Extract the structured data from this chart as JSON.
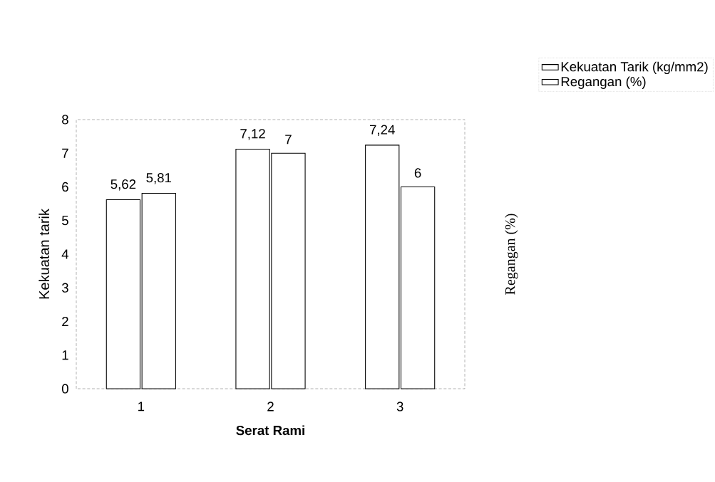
{
  "chart_data": {
    "type": "bar",
    "xlabel": "Serat Rami",
    "ylabel": "Kekuatan tarik",
    "y2label": "Regangan (%)",
    "categories": [
      "1",
      "2",
      "3"
    ],
    "series": [
      {
        "name": "Kekuatan Tarik (kg/mm2)",
        "color": "#ffffff",
        "values": [
          5.62,
          7.12,
          7.24
        ],
        "value_labels": [
          "5,62",
          "7,12",
          "7,24"
        ]
      },
      {
        "name": "Regangan (%)",
        "color": "#ffffff",
        "values": [
          5.81,
          7,
          6
        ],
        "value_labels": [
          "5,81",
          "7",
          "6"
        ]
      }
    ],
    "ylim": [
      0,
      8
    ],
    "yticks": [
      0,
      1,
      2,
      3,
      4,
      5,
      6,
      7,
      8
    ],
    "legend": "top right",
    "grid": false
  }
}
